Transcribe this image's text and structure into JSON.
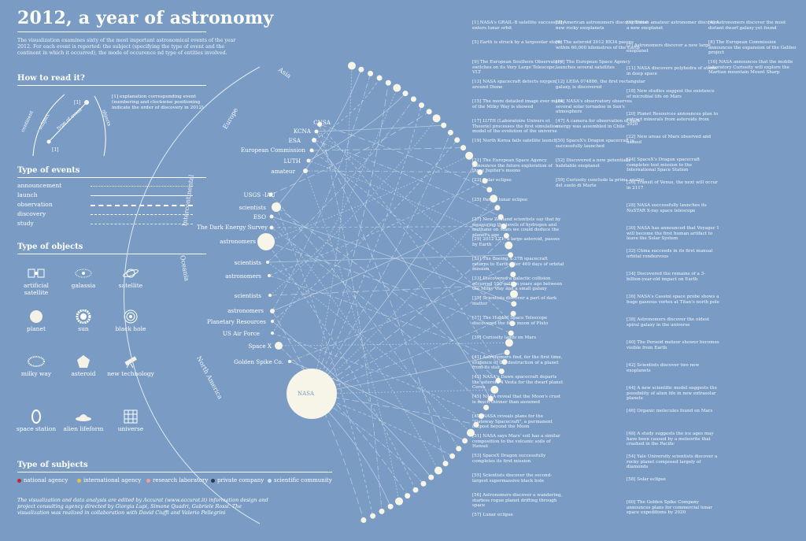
{
  "header": {
    "title": "2012, a year of astronomy",
    "intro": "The visualization examines sixty of the most important astronomical events of the year 2012. For each event is reported: the subject (specifying the type of event and the continent in which it occurred), the mode of occurence nd type of entities involved."
  },
  "how_to": {
    "heading": "How to read it?",
    "labels": {
      "continent": "continent",
      "subject": "subject",
      "type": "type of event",
      "objects": "objects",
      "n1": "[1]",
      "n2": "[1]"
    },
    "note": "[1]  explanation corresponding event (numbering and clockwise positioning indicate the order of discovery in 2012)"
  },
  "types_of_events": {
    "heading": "Type of events",
    "items": [
      {
        "label": "announcement",
        "style": "dotted"
      },
      {
        "label": "launch",
        "style": "solid"
      },
      {
        "label": "observation",
        "style": "dashdot"
      },
      {
        "label": "discovery",
        "style": "dashed"
      },
      {
        "label": "study",
        "style": "longdash"
      }
    ]
  },
  "types_of_objects": {
    "heading": "Type of objects",
    "items": [
      {
        "label": "artificial satellite",
        "icon": "artificial-satellite-icon"
      },
      {
        "label": "galassia",
        "icon": "galaxy-icon"
      },
      {
        "label": "satellite",
        "icon": "satellite-orbit-icon"
      },
      {
        "label": "planet",
        "icon": "planet-icon"
      },
      {
        "label": "sun",
        "icon": "sun-icon"
      },
      {
        "label": "black hole",
        "icon": "black-hole-icon"
      },
      {
        "label": "milky way",
        "icon": "milky-way-icon"
      },
      {
        "label": "asteroid",
        "icon": "asteroid-icon"
      },
      {
        "label": "new technology",
        "icon": "telescope-icon"
      },
      {
        "label": "space station",
        "icon": "space-station-icon"
      },
      {
        "label": "alien lifeform",
        "icon": "ufo-icon"
      },
      {
        "label": "universe",
        "icon": "universe-grid-icon"
      }
    ]
  },
  "types_of_subjects": {
    "heading": "Type of subjects",
    "items": [
      {
        "label": "national agency",
        "color": "#c0262d"
      },
      {
        "label": "international agency",
        "color": "#e6c244"
      },
      {
        "label": "research laboratory",
        "color": "#f2a0a0"
      },
      {
        "label": "private company",
        "color": "#2b3b55"
      },
      {
        "label": "scientific community",
        "color": "#cfe0f2"
      }
    ]
  },
  "credits": "The visualization and data analysis are edited by Accurat (www.accurat.it) information design and project consulting agency directed by Giorgia Lupi, Simone Quadri, Gabriele Rossi. The visualization was realized in collaboration with David Ciuffi and Valerio Pellegrini",
  "continents": {
    "asia": "Asia",
    "europe": "Europe",
    "intercontinental": "Intercontinental",
    "oceania": "Oceania",
    "north_america": "North America"
  },
  "entities": [
    {
      "label": "CNSA"
    },
    {
      "label": "KCNA"
    },
    {
      "label": "ESA"
    },
    {
      "label": "European Commission"
    },
    {
      "label": "LUTH"
    },
    {
      "label": "amateur"
    },
    {
      "label": "USGS -IAU"
    },
    {
      "label": "scientists"
    },
    {
      "label": "ESO"
    },
    {
      "label": "The Dark Energy Survey"
    },
    {
      "label": "astronomers"
    },
    {
      "label": "scientists"
    },
    {
      "label": "astronomers"
    },
    {
      "label": "scientists"
    },
    {
      "label": "astronomers"
    },
    {
      "label": "Planetary Resources"
    },
    {
      "label": "US Air Force"
    },
    {
      "label": "Space X"
    },
    {
      "label": "Golden Spike Co."
    },
    {
      "label": "NASA"
    }
  ],
  "events_col1": [
    {
      "n": "[1]",
      "t": "NASA's GRAIL-B satellite successfully enters lunar orbit"
    },
    {
      "n": "[5]",
      "t": "Earth is struck by a largesolar storm"
    },
    {
      "n": "[9]",
      "t": "The European Southern Observatory switches on its Very Large Telescope, VLT"
    },
    {
      "n": "[13]",
      "t": "NASA spacecraft detects oxygen around Dione"
    },
    {
      "n": "[15]",
      "t": "The more detailed image ever made of the Milky Way is showed"
    },
    {
      "n": "[17]",
      "t": "LUTH (Laboratoire Univers et Theorie) processes the first simulation model of the evolution of the universe"
    },
    {
      "n": "[19]",
      "t": "North Korea fails satellite launch"
    },
    {
      "n": "[21]",
      "t": "The European Space Agency announces the future exploration of three Jupiter's moons"
    },
    {
      "n": "[23]",
      "t": "Solar eclipse"
    },
    {
      "n": "[25]",
      "t": "Partial lunar eclipse"
    },
    {
      "n": "[27]",
      "t": "New Zealand scientists say that by measuring the levels of hydrogen and methane on Mars we could deduce the planet's age"
    },
    {
      "n": "[29]",
      "t": "2012 LZ1, a large asteroid, passes by Earth"
    },
    {
      "n": "[31]",
      "t": "The Boeing X-37B spacecraft returns to Earth after 469 days of orbital mission"
    },
    {
      "n": "[33]",
      "t": "Discovered a galactic collision occurred 100 million years ago between the Milky Way and a small galaxy"
    },
    {
      "n": "[35]",
      "t": "Scientists discover a part of dark matter"
    },
    {
      "n": "[37]",
      "t": "The Hubble Space Telescope discovered the fifth moon of Pluto"
    },
    {
      "n": "[39]",
      "t": "Curiosity lands on Mars"
    },
    {
      "n": "[41]",
      "t": "Astronomers find, for the first time, evidence of the destruction of a planet from its star"
    },
    {
      "n": "[43]",
      "t": "NASA's Dawn spacecraft departs the asteroid 4 Vesta for the dwarf planet Ceres"
    },
    {
      "n": "[45]",
      "t": "NASA reveal that the Moon's crust is much thinner than assumed"
    },
    {
      "n": "[49]",
      "t": "NASA reveals plans for the \"Gateway Spacecraft\", a permanent outpost beyond the Moon"
    },
    {
      "n": "[51]",
      "t": "NASA says Mars' soil has a similar composition to the volcanic soils of Hawaii"
    },
    {
      "n": "[53]",
      "t": "SpaceX Dragon successfully completes its first mission"
    },
    {
      "n": "[55]",
      "t": "Scientists discover the second-largest supermassive black hole"
    },
    {
      "n": "[56]",
      "t": "Astronomers discover a wandering, starless rogue planet drifting through space"
    },
    {
      "n": "[57]",
      "t": "Lunar eclipse"
    }
  ],
  "events_col2": [
    {
      "n": "[2]",
      "t": "American astronomers discover three new rocky exoplanets"
    },
    {
      "n": "[6]",
      "t": "The asteroid 2012 BX34 passes within 60,000 kilometres of the Earth"
    },
    {
      "n": "[10]",
      "t": "The European Space Agency launches several satellites"
    },
    {
      "n": "[12]",
      "t": "LEDA 074886, the first rectangular galaxy, is discovered"
    },
    {
      "n": "[14]",
      "t": "NASA's observatory observes several solar tornadoe in Sun's atmosphere"
    },
    {
      "n": "[47]",
      "t": "A camera for observation of dark energy was assembled in Chile"
    },
    {
      "n": "[50]",
      "t": "SpaceX's Dragon spacecraft is successfully launched"
    },
    {
      "n": "[52]",
      "t": "Discovered a new potentially habitable exoplanet"
    },
    {
      "n": "[59]",
      "t": "Curiosity conclude la prima analisi del suolo di Marte"
    }
  ],
  "events_col3": [
    {
      "n": "[3]",
      "t": "British amateur astronomer discovers a new exoplanet"
    },
    {
      "n": "[7]",
      "t": "Astronomers discover a new large exoplanet"
    },
    {
      "n": "[11]",
      "t": "NASA discovers polyhedra of atoms in deep space"
    },
    {
      "n": "[18]",
      "t": "New studies suggest the existence of microbial life on Mars"
    },
    {
      "n": "[20]",
      "t": "Planet Resources announces plan to extract minerals from asteroids from 2020"
    },
    {
      "n": "[22]",
      "t": "New areas of Mars observed and named"
    },
    {
      "n": "[24]",
      "t": "SpaceX's Dragon spacecraft completes test mission to the International Space Station"
    },
    {
      "n": "[26]",
      "t": "Transit of Venus, the next will occur in 2117"
    },
    {
      "n": "[28]",
      "t": "NASA successfully launches its NuSTAR X-ray space telescope"
    },
    {
      "n": "[30]",
      "t": "NASA has announced that Voyager 1 will become the first human artifact to leave the Solar System"
    },
    {
      "n": "[32]",
      "t": "China succeeds in its first manual orbital rendezvous"
    },
    {
      "n": "[34]",
      "t": "Discovered the remains of a 3-billion-year-old impact on Earth"
    },
    {
      "n": "[36]",
      "t": "NASA's Cassini space probe shows a huge gaseous vortex at Titan's north pole"
    },
    {
      "n": "[38]",
      "t": "Astronomers discover the oldest spiral galaxy in the universe"
    },
    {
      "n": "[40]",
      "t": "The Perseid meteor shower becomes visible from Earth"
    },
    {
      "n": "[42]",
      "t": "Scientists discover two new exoplanets"
    },
    {
      "n": "[44]",
      "t": "A new scientific model suggests the possibility of alien life in new extrasolar planets"
    },
    {
      "n": "[46]",
      "t": "Organic molecules found on Mars"
    },
    {
      "n": "[48]",
      "t": "A study suggests the ice ages may have been caused by a meteorite that crashed in the Pacific"
    },
    {
      "n": "[54]",
      "t": "Yale University scientists discover a rocky planet composed largely of diamonds"
    },
    {
      "n": "[58]",
      "t": "Solar eclipse"
    },
    {
      "n": "[60]",
      "t": "The Golden Spike Company announces plans for commercial lunar space expeditions by 2020"
    }
  ],
  "events_col0": [
    {
      "n": "[4]",
      "t": "Astronomers discover the most distant dwarf galaxy yet found"
    },
    {
      "n": "[8]",
      "t": "The European Commission announces the expansion of the Galileo project"
    },
    {
      "n": "[16]",
      "t": "NASA announces that the mobile laboratory Curiosity will explore the Martian mountain Mount Sharp"
    }
  ]
}
